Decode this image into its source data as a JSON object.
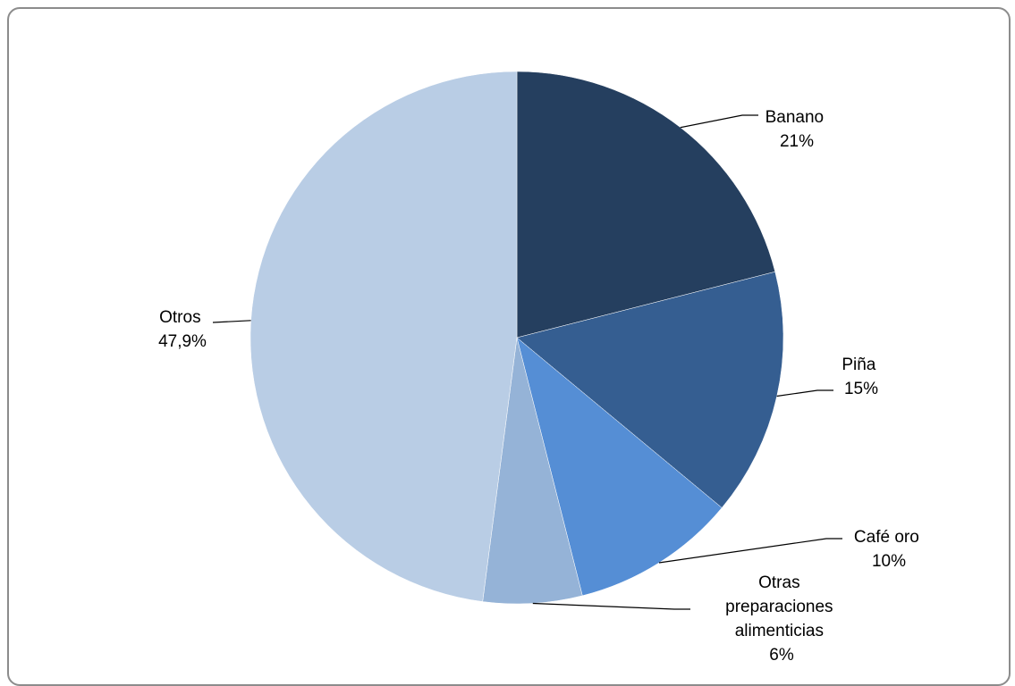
{
  "chart_data": {
    "type": "pie",
    "title": "",
    "slices": [
      {
        "label": "Banano",
        "value": 21,
        "value_label": "21%",
        "color": "#253F5F"
      },
      {
        "label": "Piña",
        "value": 15,
        "value_label": "15%",
        "color": "#355E91"
      },
      {
        "label": "Café oro",
        "value": 10,
        "value_label": "10%",
        "color": "#558ED5"
      },
      {
        "label": "Otras preparaciones alimenticias",
        "value": 6,
        "value_label": "6%",
        "color": "#95B3D7"
      },
      {
        "label": "Otros",
        "value": 47.9,
        "value_label": "47,9%",
        "color": "#B9CDE5"
      }
    ],
    "start_angle_deg": 0,
    "direction": "clockwise",
    "legend": "none",
    "data_labels": "outside-with-leader-lines"
  }
}
